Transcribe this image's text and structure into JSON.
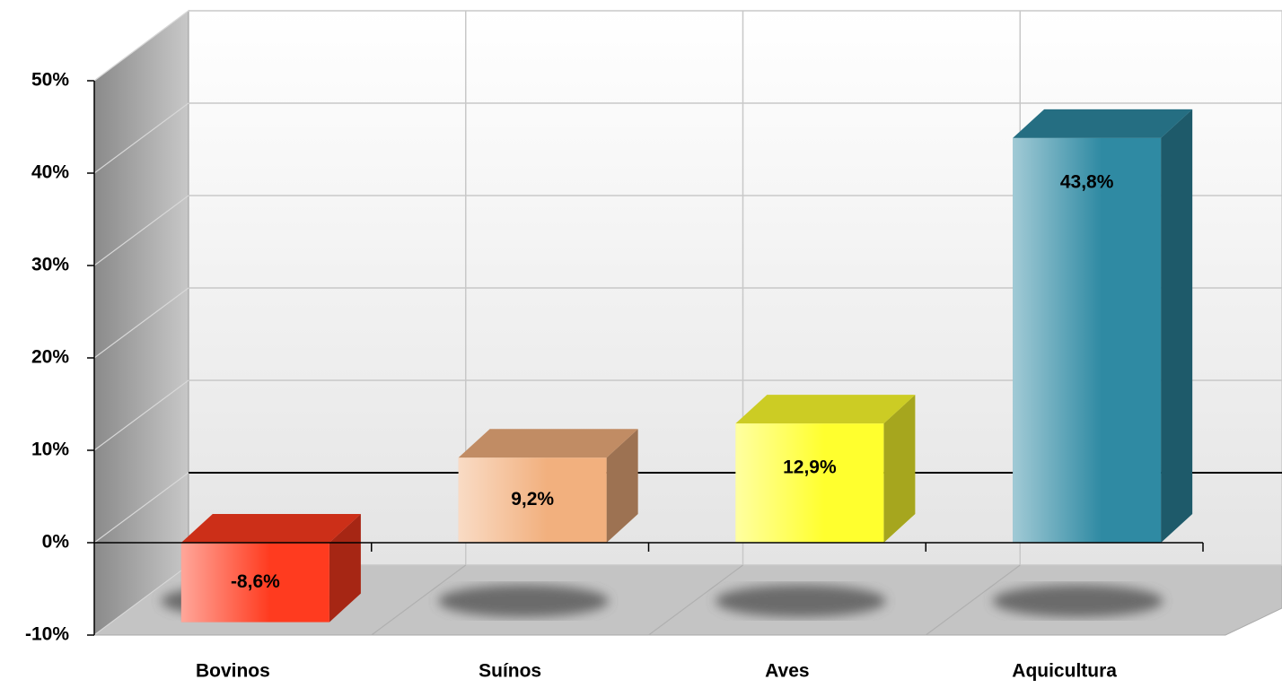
{
  "chart_data": {
    "type": "bar3d",
    "categories": [
      "Bovinos",
      "Suínos",
      "Aves",
      "Aquicultura"
    ],
    "values": [
      -8.6,
      9.2,
      12.9,
      43.8
    ],
    "value_labels": [
      "-8,6%",
      "9,2%",
      "12,9%",
      "43,8%"
    ],
    "colors": [
      "#ff3b1f",
      "#f2b07e",
      "#ffff2e",
      "#2f8aa3"
    ],
    "ylim": [
      -10,
      50
    ],
    "yticks": [
      {
        "value": -10,
        "label": "-10%"
      },
      {
        "value": 0,
        "label": "0%"
      },
      {
        "value": 10,
        "label": "10%"
      },
      {
        "value": 20,
        "label": "20%"
      },
      {
        "value": 30,
        "label": "30%"
      },
      {
        "value": 40,
        "label": "40%"
      },
      {
        "value": 50,
        "label": "50%"
      }
    ],
    "grid": true
  }
}
